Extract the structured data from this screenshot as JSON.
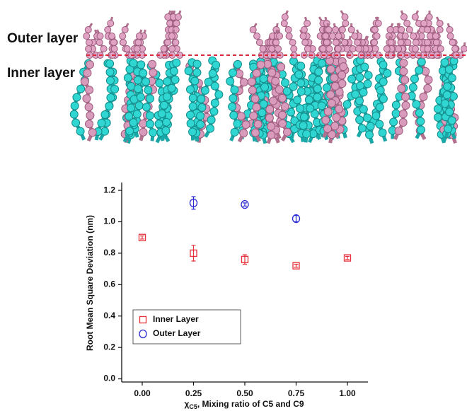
{
  "image_labels": {
    "outer": "Outer layer",
    "inner": "Inner layer"
  },
  "chart_data": {
    "type": "scatter",
    "x_label": {
      "symbol": "χ",
      "subscript": "C5",
      "text": ", Mixing ratio of C5 and C9"
    },
    "y_label": "Root Mean Square Deviation (nm)",
    "xlim": [
      -0.1,
      1.1
    ],
    "ylim": [
      -0.02,
      1.25
    ],
    "xticks": [
      {
        "value": 0,
        "label": "0.00"
      },
      0.25,
      {
        "value": 0.5,
        "label": "0.50"
      },
      0.75,
      {
        "value": 1,
        "label": "1.00"
      }
    ],
    "yticks": [
      {
        "value": 0,
        "label": "0.0"
      },
      0.2,
      0.4,
      0.6,
      0.8,
      {
        "value": 1,
        "label": "1.0"
      },
      1.2
    ],
    "legend": "lower left",
    "series": [
      {
        "name": "Inner Layer",
        "color": "#e8303a",
        "marker": "square",
        "x": [
          0,
          0.25,
          0.5,
          0.75,
          1.0
        ],
        "values": [
          0.9,
          0.8,
          0.76,
          0.72,
          0.77
        ],
        "errors": [
          0.01,
          0.05,
          0.03,
          0.01,
          0.01
        ]
      },
      {
        "name": "Outer Layer",
        "color": "#2b2bd6",
        "marker": "circle",
        "x": [
          0.25,
          0.5,
          0.75
        ],
        "values": [
          1.12,
          1.11,
          1.02
        ],
        "errors": [
          0.04,
          0.01,
          0.02
        ]
      }
    ]
  }
}
